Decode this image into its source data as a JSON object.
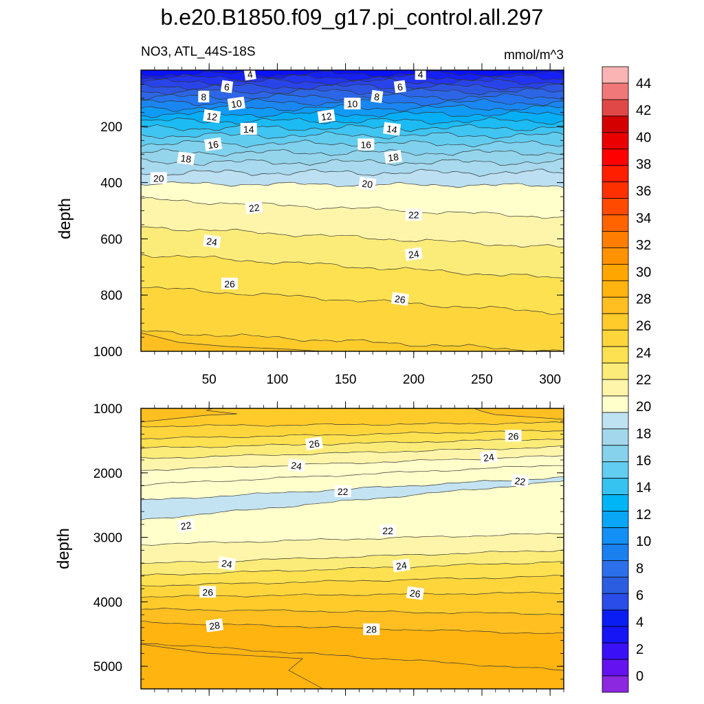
{
  "chart_data": {
    "type": "filled-contour",
    "title": "b.e20.B1850.f09_g17.pi_control.all.297",
    "subtitle_left": "NO3, ATL_44S-18S",
    "subtitle_right": "mmol/m^3",
    "xlabel": "",
    "ylabel": "depth",
    "x_range": [
      0,
      310
    ],
    "x_ticks": [
      "50",
      "100",
      "150",
      "200",
      "250",
      "300"
    ],
    "colorbar": {
      "levels": [
        0,
        2,
        4,
        6,
        8,
        10,
        12,
        14,
        16,
        18,
        20,
        22,
        24,
        26,
        28,
        30,
        32,
        34,
        36,
        38,
        40,
        42,
        44
      ],
      "labels": [
        "0",
        "2",
        "4",
        "6",
        "8",
        "10",
        "12",
        "14",
        "16",
        "18",
        "20",
        "22",
        "24",
        "26",
        "28",
        "30",
        "32",
        "34",
        "36",
        "38",
        "40",
        "42",
        "44"
      ]
    },
    "panels": [
      {
        "name": "upper",
        "depth_range": [
          0,
          1000
        ],
        "y_ticks": [
          "200",
          "400",
          "600",
          "800",
          "1000"
        ],
        "contour_labels": [
          {
            "text": "4",
            "x": 80,
            "d": 15
          },
          {
            "text": "4",
            "x": 205,
            "d": 15
          },
          {
            "text": "6",
            "x": 63,
            "d": 60
          },
          {
            "text": "6",
            "x": 190,
            "d": 60
          },
          {
            "text": "8",
            "x": 46,
            "d": 95
          },
          {
            "text": "8",
            "x": 173,
            "d": 95
          },
          {
            "text": "10",
            "x": 70,
            "d": 120
          },
          {
            "text": "10",
            "x": 155,
            "d": 120
          },
          {
            "text": "12",
            "x": 52,
            "d": 165
          },
          {
            "text": "12",
            "x": 136,
            "d": 165
          },
          {
            "text": "14",
            "x": 79,
            "d": 210
          },
          {
            "text": "14",
            "x": 184,
            "d": 210
          },
          {
            "text": "16",
            "x": 53,
            "d": 265
          },
          {
            "text": "16",
            "x": 165,
            "d": 265
          },
          {
            "text": "18",
            "x": 33,
            "d": 315
          },
          {
            "text": "18",
            "x": 185,
            "d": 310
          },
          {
            "text": "20",
            "x": 13,
            "d": 385
          },
          {
            "text": "20",
            "x": 166,
            "d": 405
          },
          {
            "text": "22",
            "x": 83,
            "d": 490
          },
          {
            "text": "22",
            "x": 200,
            "d": 515
          },
          {
            "text": "24",
            "x": 52,
            "d": 610
          },
          {
            "text": "24",
            "x": 200,
            "d": 655
          },
          {
            "text": "26",
            "x": 65,
            "d": 760
          },
          {
            "text": "26",
            "x": 190,
            "d": 815
          }
        ]
      },
      {
        "name": "lower",
        "depth_range": [
          1000,
          5350
        ],
        "y_ticks": [
          "1000",
          "2000",
          "3000",
          "4000",
          "5000"
        ],
        "contour_labels": [
          {
            "text": "26",
            "x": 127,
            "d": 1550
          },
          {
            "text": "26",
            "x": 273,
            "d": 1430
          },
          {
            "text": "24",
            "x": 114,
            "d": 1890
          },
          {
            "text": "24",
            "x": 255,
            "d": 1760
          },
          {
            "text": "22",
            "x": 148,
            "d": 2290
          },
          {
            "text": "22",
            "x": 278,
            "d": 2130
          },
          {
            "text": "22",
            "x": 33,
            "d": 2820
          },
          {
            "text": "22",
            "x": 181,
            "d": 2900
          },
          {
            "text": "24",
            "x": 63,
            "d": 3410
          },
          {
            "text": "24",
            "x": 191,
            "d": 3440
          },
          {
            "text": "26",
            "x": 49,
            "d": 3850
          },
          {
            "text": "26",
            "x": 201,
            "d": 3870
          },
          {
            "text": "28",
            "x": 54,
            "d": 4370
          },
          {
            "text": "28",
            "x": 169,
            "d": 4430
          }
        ]
      }
    ]
  },
  "colors": {
    "scale": [
      "#8b28e0",
      "#6412ef",
      "#3a10f6",
      "#1515f5",
      "#0a1ef4",
      "#2a4ce8",
      "#2b5de0",
      "#2c6fea",
      "#1a80f0",
      "#148ff5",
      "#09a6f6",
      "#00b5f5",
      "#36c3f0",
      "#62cdf0",
      "#86d2ec",
      "#a3d8ec",
      "#bfe2f2",
      "#ffffcc",
      "#fff5aa",
      "#fbec7a",
      "#fde150",
      "#fed63c",
      "#fecb2a",
      "#ffbf20",
      "#ffb410",
      "#ffa600",
      "#ff9200",
      "#ff7d00",
      "#ff6400",
      "#ff4a00",
      "#ff3000",
      "#ff1e00",
      "#ff0000",
      "#ea0000",
      "#d40000",
      "#e04848",
      "#f07878",
      "#fbb4b4"
    ]
  }
}
